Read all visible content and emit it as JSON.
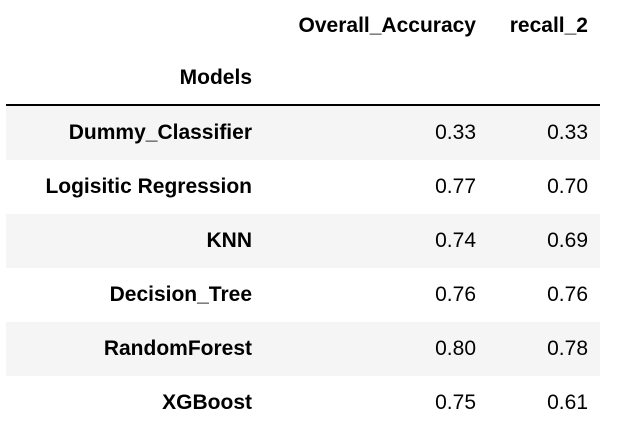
{
  "table": {
    "columns": [
      "Overall_Accuracy",
      "recall_2"
    ],
    "index_name": "Models",
    "rows": [
      {
        "model": "Dummy_Classifier",
        "overall_accuracy": "0.33",
        "recall_2": "0.33"
      },
      {
        "model": "Logisitic Regression",
        "overall_accuracy": "0.77",
        "recall_2": "0.70"
      },
      {
        "model": "KNN",
        "overall_accuracy": "0.74",
        "recall_2": "0.69"
      },
      {
        "model": "Decision_Tree",
        "overall_accuracy": "0.76",
        "recall_2": "0.76"
      },
      {
        "model": "RandomForest",
        "overall_accuracy": "0.80",
        "recall_2": "0.78"
      },
      {
        "model": "XGBoost",
        "overall_accuracy": "0.75",
        "recall_2": "0.61"
      }
    ]
  },
  "colors": {
    "stripe": "#f5f5f5",
    "background": "#ffffff",
    "text": "#000000",
    "header_rule": "#000000"
  }
}
